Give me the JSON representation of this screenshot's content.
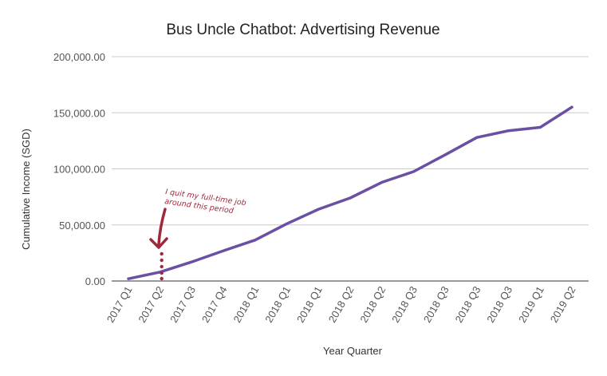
{
  "chart_data": {
    "type": "line",
    "title": "Bus Uncle Chatbot: Advertising Revenue",
    "xlabel": "Year Quarter",
    "ylabel": "Cumulative Income (SGD)",
    "categories": [
      "2017 Q1",
      "2017 Q2",
      "2017 Q3",
      "2017 Q4",
      "2018 Q1",
      "2018 Q1",
      "2018 Q1",
      "2018 Q2",
      "2018 Q2",
      "2018 Q3",
      "2018 Q3",
      "2018 Q3",
      "2018 Q3",
      "2019 Q1",
      "2019 Q2"
    ],
    "values": [
      2000,
      8000,
      17000,
      27000,
      36500,
      51000,
      64000,
      74000,
      88000,
      97500,
      112500,
      128000,
      134000,
      137000,
      155000
    ],
    "yticks": [
      "0.00",
      "50,000.00",
      "100,000.00",
      "150,000.00",
      "200,000.00"
    ],
    "ylim": [
      0,
      200000
    ],
    "grid": true,
    "line_color": "#6a4fa3",
    "annotation": {
      "text_lines": [
        "I quit my full-time job",
        "around this period"
      ],
      "color": "#a0283c",
      "category_index": 1
    }
  }
}
